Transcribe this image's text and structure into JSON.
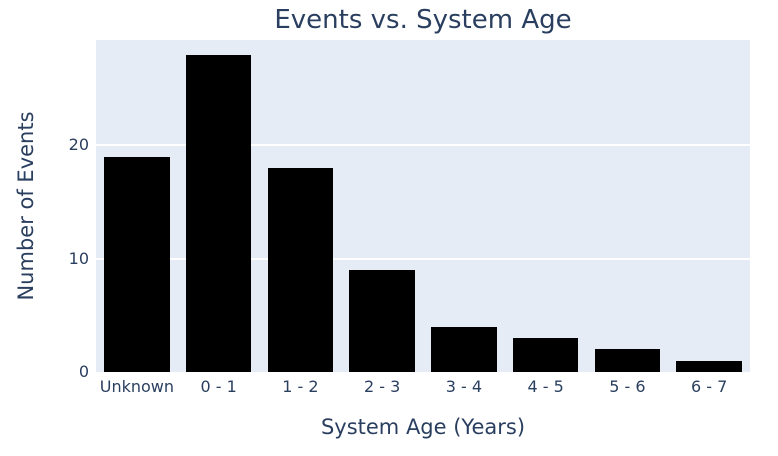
{
  "colors": {
    "text": "#2a3f5f",
    "plot_bg": "#e5ecf6",
    "grid": "#ffffff",
    "bar": "#000000",
    "page_bg": "#ffffff"
  },
  "chart_data": {
    "type": "bar",
    "title": "Events vs. System Age",
    "xlabel": "System Age (Years)",
    "ylabel": "Number of Events",
    "categories": [
      "Unknown",
      "0 - 1",
      "1 - 2",
      "2 - 3",
      "3 - 4",
      "4 - 5",
      "5 - 6",
      "6 - 7"
    ],
    "values": [
      19,
      28,
      18,
      9,
      4,
      3,
      2,
      1
    ],
    "yticks": [
      0,
      10,
      20
    ],
    "ylim": [
      0,
      29.3
    ],
    "grid": "horizontal",
    "legend": "none",
    "bar_relative_width": 0.8
  }
}
